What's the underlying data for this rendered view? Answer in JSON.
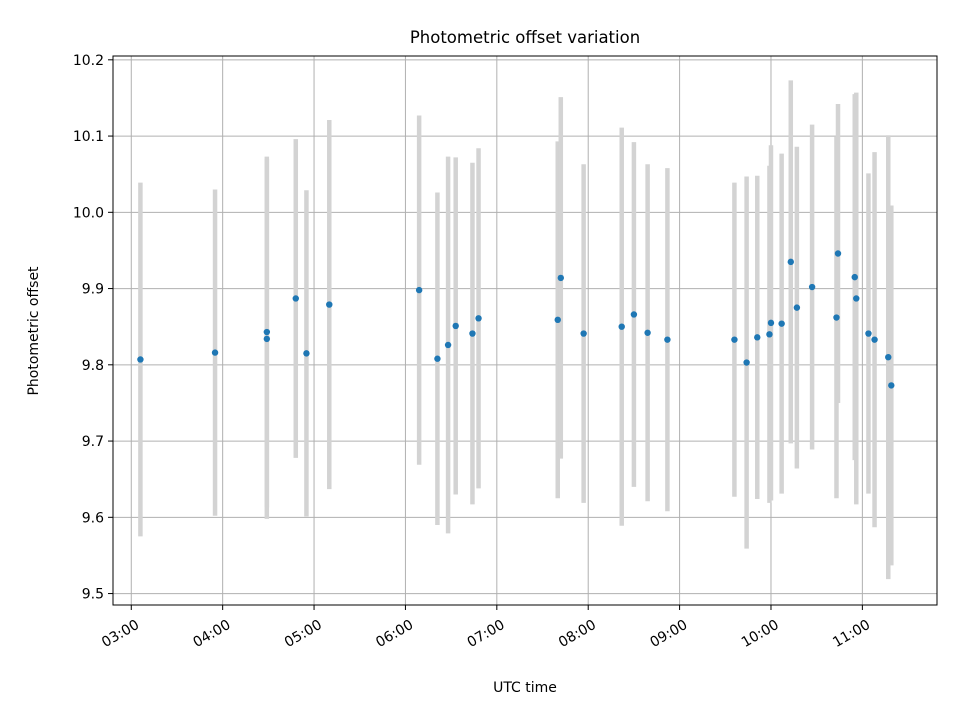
{
  "chart_data": {
    "type": "scatter",
    "title": "Photometric offset variation",
    "xlabel": "UTC time",
    "ylabel": "Photometric offset",
    "xlim": [
      "02:48",
      "11:49"
    ],
    "ylim": [
      9.485,
      10.205
    ],
    "x_ticks": [
      "03:00",
      "04:00",
      "05:00",
      "06:00",
      "07:00",
      "08:00",
      "09:00",
      "10:00",
      "11:00"
    ],
    "y_ticks": [
      9.5,
      9.6,
      9.7,
      9.8,
      9.9,
      10.0,
      10.1,
      10.2
    ],
    "y_tick_labels": [
      "9.5",
      "9.6",
      "9.7",
      "9.8",
      "9.9",
      "10.0",
      "10.1",
      "10.2"
    ],
    "grid": true,
    "colors": {
      "points": "#1f77b4",
      "errorbars": "#d3d3d3",
      "grid": "#b0b0b0"
    },
    "series": [
      {
        "x": [
          "03:06",
          "03:55",
          "04:29",
          "04:29",
          "04:48",
          "04:55",
          "05:10",
          "06:09",
          "06:21",
          "06:28",
          "06:33",
          "06:44",
          "06:48",
          "07:40",
          "07:42",
          "07:57",
          "08:22",
          "08:30",
          "08:39",
          "08:52",
          "09:36",
          "09:44",
          "09:51",
          "09:59",
          "10:00",
          "10:07",
          "10:13",
          "10:17",
          "10:27",
          "10:43",
          "10:44",
          "10:55",
          "10:56",
          "11:04",
          "11:08",
          "11:17",
          "11:19"
        ],
        "y": [
          9.807,
          9.816,
          9.843,
          9.834,
          9.887,
          9.815,
          9.879,
          9.898,
          9.808,
          9.826,
          9.851,
          9.841,
          9.861,
          9.859,
          9.914,
          9.841,
          9.85,
          9.866,
          9.842,
          9.833,
          9.833,
          9.803,
          9.836,
          9.84,
          9.855,
          9.854,
          9.935,
          9.875,
          9.902,
          9.862,
          9.946,
          9.915,
          9.887,
          9.841,
          9.833,
          9.81,
          9.773
        ],
        "y_err": [
          0.232,
          0.214,
          0.23,
          0.236,
          0.209,
          0.214,
          0.242,
          0.229,
          0.218,
          0.247,
          0.221,
          0.224,
          0.223,
          0.234,
          0.237,
          0.222,
          0.261,
          0.226,
          0.221,
          0.225,
          0.206,
          0.244,
          0.212,
          0.221,
          0.233,
          0.223,
          0.238,
          0.211,
          0.213,
          0.237,
          0.196,
          0.24,
          0.27,
          0.21,
          0.246,
          0.291,
          0.236
        ]
      }
    ]
  }
}
